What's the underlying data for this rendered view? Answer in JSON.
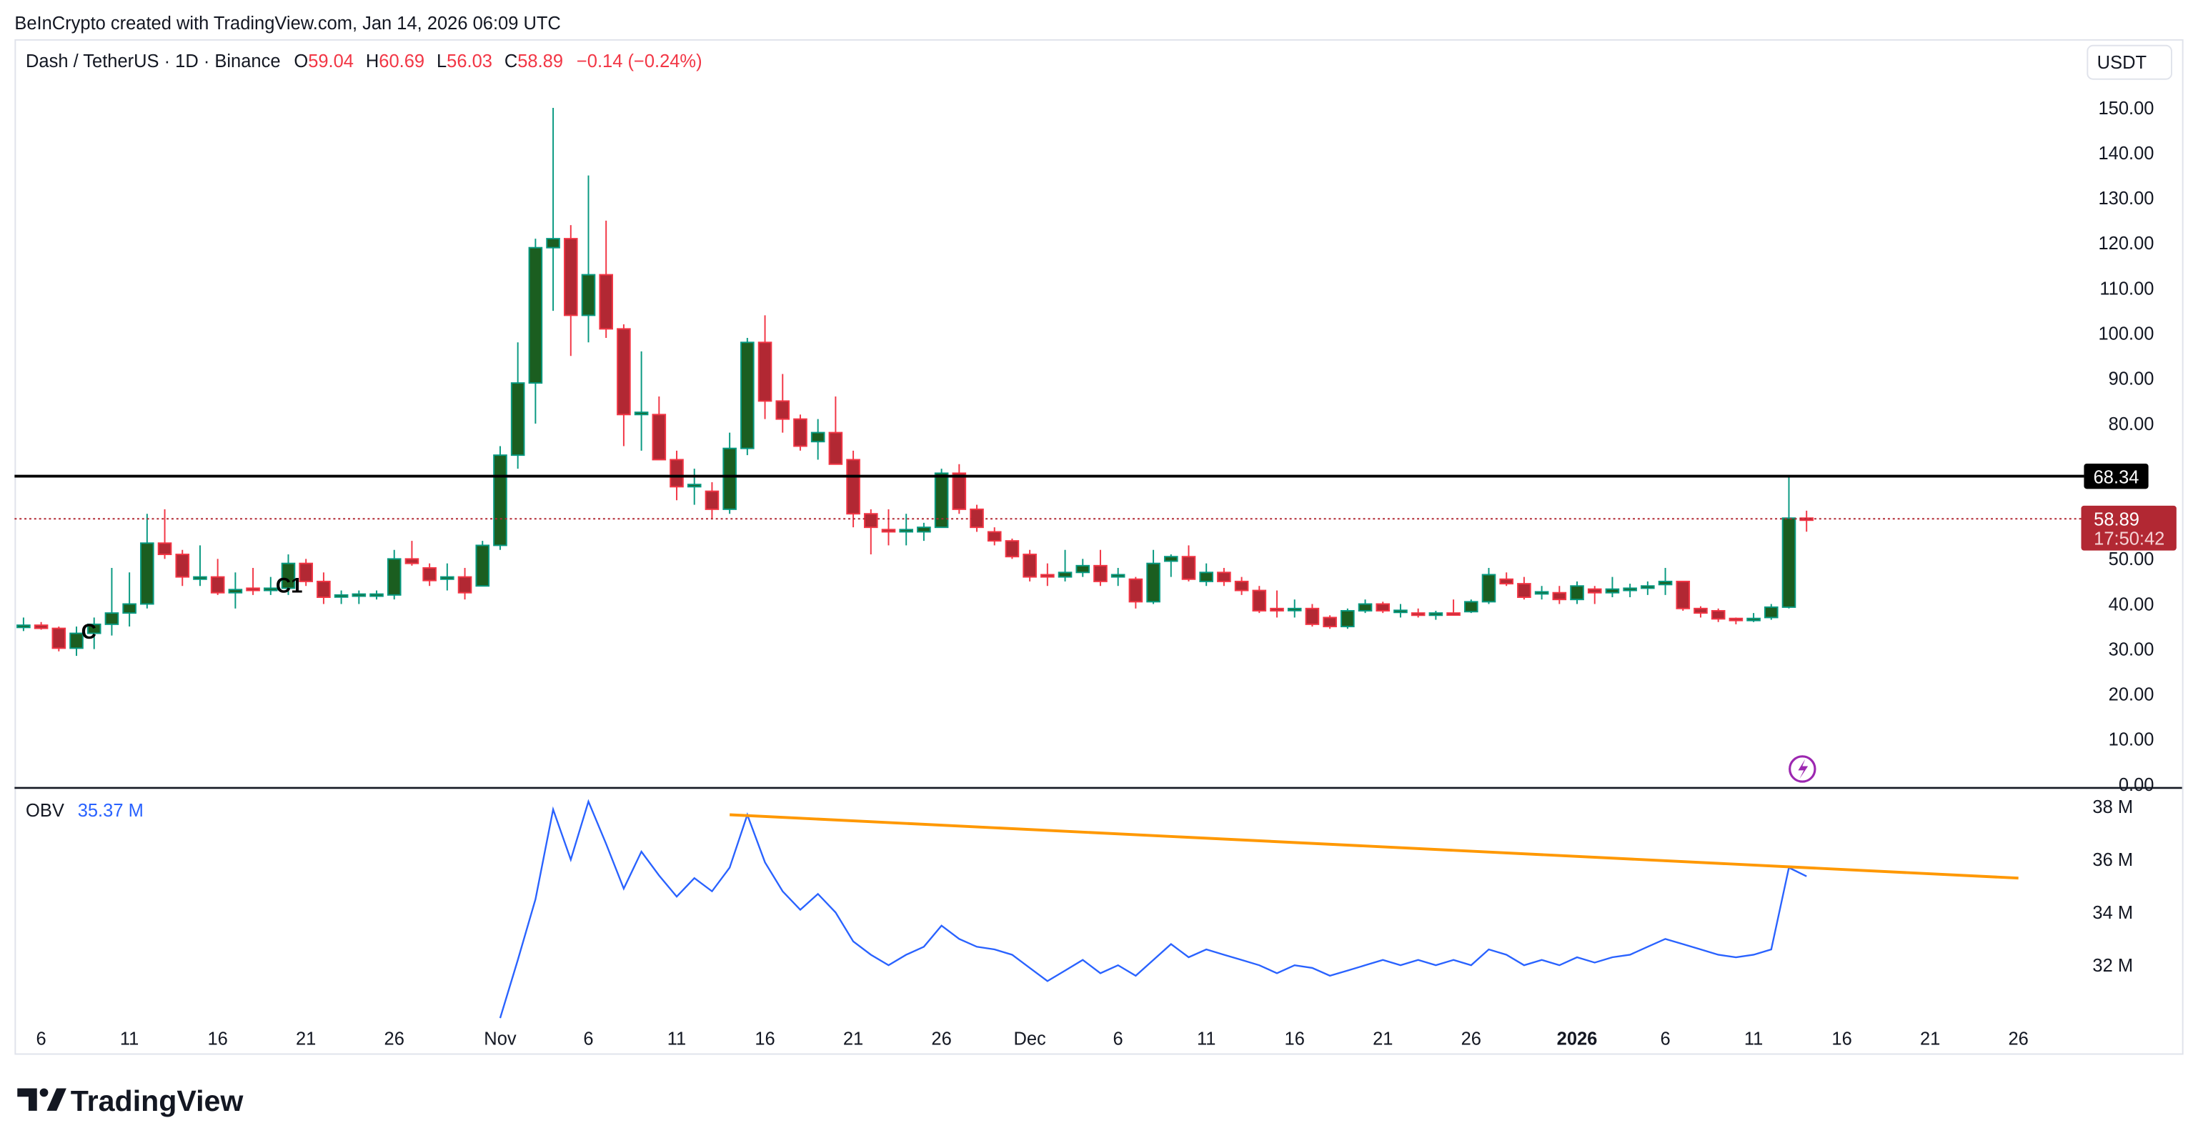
{
  "attribution": "BeInCrypto created with TradingView.com, Jan 14, 2026 06:09 UTC",
  "legend": {
    "symbol": "Dash / TetherUS · 1D · Binance",
    "open_label": "O",
    "open": "59.04",
    "high_label": "H",
    "high": "60.69",
    "low_label": "L",
    "low": "56.03",
    "close_label": "C",
    "close": "58.89",
    "change": "−0.14 (−0.24%)"
  },
  "currency_button": "USDT",
  "price_axis": [
    "150.00",
    "140.00",
    "130.00",
    "120.00",
    "110.00",
    "100.00",
    "90.00",
    "80.00",
    "50.00",
    "40.00",
    "30.00",
    "20.00",
    "10.00",
    "0.00"
  ],
  "tags": {
    "level": "68.34",
    "last_price": "58.89",
    "countdown": "17:50:42"
  },
  "markers": [
    "C",
    "C1"
  ],
  "obv": {
    "label": "OBV",
    "value": "35.37 M",
    "axis": [
      "38 M",
      "36 M",
      "34 M",
      "32 M"
    ]
  },
  "time_axis": [
    "6",
    "11",
    "16",
    "21",
    "26",
    "Nov",
    "6",
    "11",
    "16",
    "21",
    "26",
    "Dec",
    "6",
    "11",
    "16",
    "21",
    "26",
    "2026",
    "6",
    "11",
    "16",
    "21",
    "26"
  ],
  "logo": "TradingView",
  "colors": {
    "up_body": "#1b5e20",
    "up_border": "#089981",
    "down_body": "#b22833",
    "down_border": "#f23645",
    "obv_line": "#2962ff",
    "trendline": "#ff9800",
    "level_line": "#000000",
    "last_price": "#b22833",
    "alert": "#9c27b0"
  },
  "chart_data": [
    {
      "type": "candlestick",
      "title": "Dash / TetherUS · 1D · Binance",
      "ylim": [
        0,
        155
      ],
      "columns": [
        "date",
        "open",
        "high",
        "low",
        "close"
      ],
      "candles": [
        [
          "2025-10-05",
          34.8,
          37,
          34,
          35.3
        ],
        [
          "2025-10-06",
          35.3,
          36,
          34.3,
          34.6
        ],
        [
          "2025-10-07",
          34.6,
          35,
          29.5,
          30.2
        ],
        [
          "2025-10-08",
          30.2,
          35,
          28.5,
          33.5
        ],
        [
          "2025-10-09",
          33.5,
          37,
          30,
          35.5
        ],
        [
          "2025-10-10",
          35.5,
          48,
          33,
          38
        ],
        [
          "2025-10-11",
          38,
          47,
          35,
          40
        ],
        [
          "2025-10-12",
          40,
          60,
          39,
          53.5
        ],
        [
          "2025-10-13",
          53.5,
          61,
          50,
          51
        ],
        [
          "2025-10-14",
          51,
          52,
          44,
          46
        ],
        [
          "2025-10-15",
          45.5,
          53,
          44,
          46
        ],
        [
          "2025-10-16",
          46,
          50,
          42,
          42.5
        ],
        [
          "2025-10-17",
          42.5,
          47,
          39,
          43.2
        ],
        [
          "2025-10-18",
          43.5,
          48,
          42,
          43
        ],
        [
          "2025-10-19",
          43,
          46,
          42,
          43.5
        ],
        [
          "2025-10-20",
          43.5,
          51,
          42,
          49
        ],
        [
          "2025-10-21",
          49,
          50,
          44,
          45
        ],
        [
          "2025-10-22",
          45,
          47,
          40,
          41.5
        ],
        [
          "2025-10-23",
          41.7,
          43,
          40,
          42
        ],
        [
          "2025-10-24",
          42,
          43,
          40,
          42.2
        ],
        [
          "2025-10-25",
          41.8,
          43,
          41,
          42.2
        ],
        [
          "2025-10-26",
          42,
          52,
          41,
          50
        ],
        [
          "2025-10-27",
          50,
          54,
          48.5,
          49
        ],
        [
          "2025-10-28",
          48,
          49,
          44,
          45.2
        ],
        [
          "2025-10-29",
          45.5,
          49,
          43,
          46
        ],
        [
          "2025-10-30",
          46,
          48,
          41,
          42.5
        ],
        [
          "2025-10-31",
          44,
          54,
          44,
          53
        ],
        [
          "2025-11-01",
          53,
          75,
          52,
          73
        ],
        [
          "2025-11-02",
          73,
          98,
          70,
          89
        ],
        [
          "2025-11-03",
          89,
          121,
          80,
          119
        ],
        [
          "2025-11-04",
          119,
          150,
          105,
          121
        ],
        [
          "2025-11-05",
          121,
          124,
          95,
          104
        ],
        [
          "2025-11-06",
          104,
          135,
          98,
          113
        ],
        [
          "2025-11-07",
          113,
          125,
          99,
          101
        ],
        [
          "2025-11-08",
          101,
          102,
          75,
          82
        ],
        [
          "2025-11-09",
          82,
          96,
          74,
          82.5
        ],
        [
          "2025-11-10",
          82,
          86,
          72,
          72
        ],
        [
          "2025-11-11",
          72,
          74,
          63,
          66
        ],
        [
          "2025-11-12",
          66,
          70,
          62,
          66.5
        ],
        [
          "2025-11-13",
          65,
          67,
          59,
          61
        ],
        [
          "2025-11-14",
          61,
          78,
          60,
          74.5
        ],
        [
          "2025-11-15",
          74.5,
          99,
          73,
          98
        ],
        [
          "2025-11-16",
          98,
          104,
          81,
          85
        ],
        [
          "2025-11-17",
          85,
          91,
          78,
          81
        ],
        [
          "2025-11-18",
          81,
          82,
          74,
          75
        ],
        [
          "2025-11-19",
          76,
          81,
          72,
          78
        ],
        [
          "2025-11-20",
          78,
          86,
          71,
          71
        ],
        [
          "2025-11-21",
          72,
          74,
          57,
          60
        ],
        [
          "2025-11-22",
          60,
          61,
          51,
          57
        ],
        [
          "2025-11-23",
          56.5,
          61,
          53,
          56
        ],
        [
          "2025-11-24",
          56,
          60,
          53,
          56.5
        ],
        [
          "2025-11-25",
          56,
          58,
          54,
          57
        ],
        [
          "2025-11-26",
          57,
          70,
          57,
          69
        ],
        [
          "2025-11-27",
          69,
          71,
          60,
          61
        ],
        [
          "2025-11-28",
          61,
          62,
          56,
          57
        ],
        [
          "2025-11-29",
          56,
          57,
          53,
          54
        ],
        [
          "2025-11-30",
          54,
          54.5,
          50,
          50.5
        ],
        [
          "2025-12-01",
          51,
          52,
          45,
          46
        ],
        [
          "2025-12-02",
          46.5,
          49,
          44,
          46
        ],
        [
          "2025-12-03",
          46,
          52,
          45,
          47
        ],
        [
          "2025-12-04",
          47,
          50,
          46,
          48.5
        ],
        [
          "2025-12-05",
          48.5,
          52,
          44,
          45
        ],
        [
          "2025-12-06",
          46,
          48,
          44,
          46.5
        ],
        [
          "2025-12-07",
          45.5,
          46,
          39,
          40.5
        ],
        [
          "2025-12-08",
          40.5,
          52,
          40,
          49
        ],
        [
          "2025-12-09",
          49.5,
          51,
          46,
          50.5
        ],
        [
          "2025-12-10",
          50.5,
          53,
          45,
          45.5
        ],
        [
          "2025-12-11",
          45,
          49,
          44,
          47
        ],
        [
          "2025-12-12",
          47,
          48,
          44,
          45
        ],
        [
          "2025-12-13",
          45,
          46,
          42,
          43
        ],
        [
          "2025-12-14",
          43,
          44,
          38,
          38.5
        ],
        [
          "2025-12-15",
          39,
          43,
          37,
          38.5
        ],
        [
          "2025-12-16",
          38.7,
          41,
          37,
          39
        ],
        [
          "2025-12-17",
          39,
          40,
          35,
          35.5
        ],
        [
          "2025-12-18",
          37,
          37.5,
          34.5,
          35
        ],
        [
          "2025-12-19",
          35,
          39,
          34.5,
          38.5
        ],
        [
          "2025-12-20",
          38.5,
          41,
          38,
          40
        ],
        [
          "2025-12-21",
          40,
          40.5,
          38,
          38.5
        ],
        [
          "2025-12-22",
          38.4,
          40,
          37,
          38.6
        ],
        [
          "2025-12-23",
          38,
          39,
          37,
          37.5
        ],
        [
          "2025-12-24",
          37.5,
          38.5,
          36.5,
          38
        ],
        [
          "2025-12-25",
          38,
          41,
          37.6,
          37.7
        ],
        [
          "2025-12-26",
          38.3,
          41,
          38,
          40.5
        ],
        [
          "2025-12-27",
          40.5,
          48,
          40,
          46.5
        ],
        [
          "2025-12-28",
          45.5,
          47,
          44,
          44.5
        ],
        [
          "2025-12-29",
          44.5,
          46,
          41,
          41.5
        ],
        [
          "2025-12-30",
          42.3,
          44,
          41,
          42.7
        ],
        [
          "2025-12-31",
          42.5,
          44,
          40,
          41
        ],
        [
          "2026-01-01",
          41,
          45,
          40,
          44
        ],
        [
          "2026-01-02",
          43.3,
          44,
          40,
          42.5
        ],
        [
          "2026-01-03",
          42.5,
          46,
          41.5,
          43.3
        ],
        [
          "2026-01-04",
          43,
          44.5,
          41.5,
          43.5
        ],
        [
          "2026-01-05",
          43.5,
          45,
          42,
          44
        ],
        [
          "2026-01-06",
          44.3,
          48,
          42,
          45
        ],
        [
          "2026-01-07",
          45,
          45,
          38.5,
          39
        ],
        [
          "2026-01-08",
          39,
          39.5,
          37,
          38
        ],
        [
          "2026-01-09",
          38.5,
          39,
          36,
          36.7
        ],
        [
          "2026-01-10",
          36.8,
          37,
          35.5,
          36.5
        ],
        [
          "2026-01-11",
          36.5,
          38,
          36,
          36.8
        ],
        [
          "2026-01-12",
          37,
          40,
          36.5,
          39.3
        ],
        [
          "2026-01-13",
          39.3,
          68.3,
          39,
          59.04
        ],
        [
          "2026-01-14",
          59.04,
          60.69,
          56.03,
          58.89
        ]
      ],
      "horizontal_level": 68.34,
      "last_price": 58.89
    },
    {
      "type": "line",
      "series": [
        {
          "name": "OBV",
          "unit": "M",
          "start": "2025-11-01",
          "end": "2026-01-14",
          "values": [
            30.0,
            32.2,
            34.5,
            37.9,
            36.0,
            38.2,
            36.6,
            34.9,
            36.3,
            35.4,
            34.6,
            35.3,
            34.8,
            35.7,
            37.7,
            35.9,
            34.8,
            34.1,
            34.7,
            34.0,
            32.9,
            32.4,
            32.0,
            32.4,
            32.7,
            33.5,
            33.0,
            32.7,
            32.6,
            32.4,
            31.9,
            31.4,
            31.8,
            32.2,
            31.7,
            32.0,
            31.6,
            32.2,
            32.8,
            32.3,
            32.6,
            32.4,
            32.2,
            32.0,
            31.7,
            32.0,
            31.9,
            31.6,
            31.8,
            32.0,
            32.2,
            32.0,
            32.2,
            32.0,
            32.2,
            32.0,
            32.6,
            32.4,
            32.0,
            32.2,
            32.0,
            32.3,
            32.1,
            32.3,
            32.4,
            32.7,
            33.0,
            32.8,
            32.6,
            32.4,
            32.3,
            32.4,
            32.6,
            35.7,
            35.37
          ]
        }
      ],
      "trendline": [
        [
          "2025-11-14",
          37.7
        ],
        [
          "2026-01-26",
          35.3
        ]
      ],
      "ylim": [
        29.5,
        38.6
      ]
    }
  ]
}
